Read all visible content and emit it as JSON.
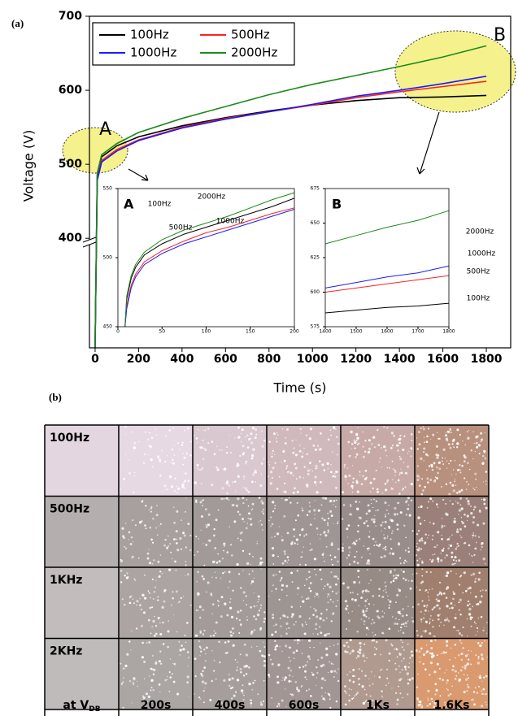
{
  "panel_labels": [
    "(a)",
    "(b)"
  ],
  "chart_data": [
    {
      "type": "line",
      "x_label": "Time (s)",
      "y_label": "Voltage (V)",
      "legend": "upper left",
      "annotations": [
        "A",
        "B"
      ],
      "x": [
        0,
        10,
        30,
        100,
        200,
        400,
        600,
        800,
        1000,
        1200,
        1400,
        1600,
        1800
      ],
      "series": [
        {
          "name": "100Hz",
          "color": "#000000",
          "values": [
            252,
            485,
            510,
            525,
            537,
            552,
            563,
            572,
            580,
            586,
            590,
            591,
            593
          ]
        },
        {
          "name": "500Hz",
          "color": "#ff2020",
          "values": [
            252,
            480,
            505,
            520,
            533,
            550,
            562,
            571,
            580,
            590,
            598,
            605,
            612
          ]
        },
        {
          "name": "1000Hz",
          "color": "#1a1aff",
          "values": [
            252,
            478,
            503,
            518,
            532,
            549,
            561,
            571,
            581,
            592,
            600,
            609,
            619
          ]
        },
        {
          "name": "2000Hz",
          "color": "#1a8a1a",
          "values": [
            252,
            488,
            513,
            528,
            543,
            562,
            578,
            594,
            608,
            620,
            632,
            645,
            660
          ]
        }
      ],
      "xlim": [
        -26,
        1912
      ],
      "ylim": [
        252,
        700
      ],
      "xticks": [
        0,
        200,
        400,
        600,
        800,
        1000,
        1200,
        1400,
        1600,
        1800
      ],
      "yticks": [
        400,
        500,
        600,
        700
      ]
    },
    {
      "type": "line",
      "annotations": [
        "A",
        "100Hz",
        "2000Hz",
        "500Hz",
        "1000Hz"
      ],
      "x": [
        8,
        10,
        15,
        20,
        30,
        50,
        75,
        100,
        125,
        150,
        175,
        200
      ],
      "series": [
        {
          "color": "#000000",
          "values": [
            450,
            470,
            485,
            493,
            502,
            510,
            517,
            522,
            527,
            532,
            537,
            543
          ]
        },
        {
          "color": "#ff2020",
          "values": [
            450,
            465,
            480,
            488,
            497,
            505,
            512,
            518,
            522,
            527,
            532,
            536
          ]
        },
        {
          "color": "#1a1aff",
          "values": [
            450,
            463,
            478,
            486,
            495,
            503,
            510,
            515,
            520,
            525,
            530,
            535
          ]
        },
        {
          "color": "#1a8a1a",
          "values": [
            450,
            472,
            487,
            495,
            504,
            513,
            520,
            525,
            530,
            536,
            542,
            547
          ]
        }
      ],
      "xlim": [
        0,
        200
      ],
      "ylim": [
        450,
        550
      ],
      "xticks": [
        0,
        50,
        100,
        150,
        200
      ],
      "yticks": [
        450,
        500,
        550
      ]
    },
    {
      "type": "line",
      "annotations": [
        "B",
        "2000Hz",
        "1000Hz",
        "500Hz",
        "100Hz"
      ],
      "x": [
        1400,
        1500,
        1600,
        1700,
        1800
      ],
      "series": [
        {
          "color": "#000000",
          "values": [
            585,
            587,
            589,
            590,
            592
          ]
        },
        {
          "color": "#ff2020",
          "values": [
            600,
            603,
            606,
            609,
            612
          ]
        },
        {
          "color": "#1a1aff",
          "values": [
            603,
            607,
            611,
            614,
            619
          ]
        },
        {
          "color": "#1a8a1a",
          "values": [
            635,
            641,
            647,
            652,
            659
          ]
        }
      ],
      "xlim": [
        1400,
        1800
      ],
      "ylim": [
        575,
        675
      ],
      "xticks": [
        1400,
        1500,
        1600,
        1700,
        1800
      ],
      "yticks": [
        575,
        600,
        625,
        650,
        675
      ]
    }
  ],
  "image_grid": {
    "row_labels": [
      "100Hz",
      "500Hz",
      "1KHz",
      "2KHz"
    ],
    "column_labels": [
      {
        "text": "at V",
        "sub": "DB"
      },
      "200s",
      "400s",
      "600s",
      "1Ks",
      "1.6Ks"
    ]
  }
}
